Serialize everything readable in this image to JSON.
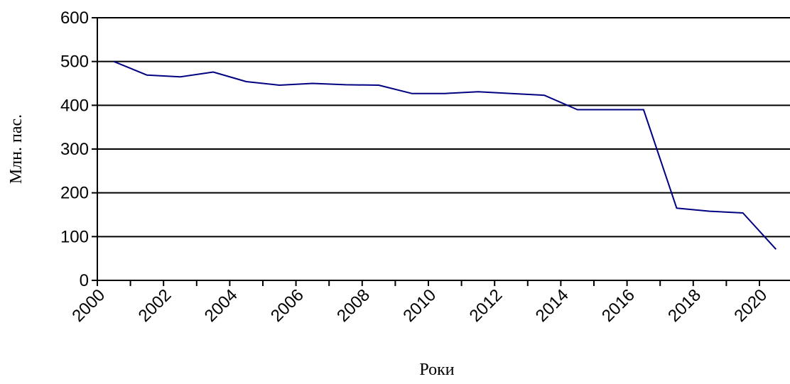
{
  "chart_data": {
    "type": "line",
    "title": "",
    "xlabel": "Роки",
    "ylabel": "Млн. пас.",
    "ylim": [
      0,
      600
    ],
    "yticks": [
      "0",
      "100",
      "200",
      "300",
      "400",
      "500",
      "600"
    ],
    "xticks": [
      "2000",
      "2002",
      "2004",
      "2006",
      "2008",
      "2010",
      "2012",
      "2014",
      "2016",
      "2018",
      "2020"
    ],
    "grid": "horizontal",
    "legend": "none",
    "colors": {
      "line": "#000080",
      "grid": "#000000",
      "background": "#ffffff"
    },
    "series": [
      {
        "x": [
          2000,
          2001,
          2002,
          2003,
          2004,
          2005,
          2006,
          2007,
          2008,
          2009,
          2010,
          2011,
          2012,
          2013,
          2014,
          2015,
          2016,
          2017,
          2018,
          2019,
          2020
        ],
        "values": [
          500,
          469,
          465,
          476,
          454,
          446,
          450,
          447,
          446,
          427,
          427,
          431,
          427,
          423,
          390,
          390,
          390,
          165,
          158,
          154,
          71
        ]
      }
    ]
  }
}
